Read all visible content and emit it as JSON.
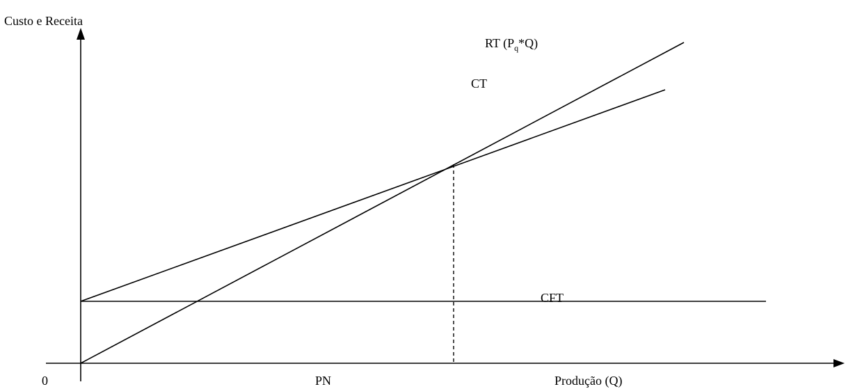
{
  "diagram": {
    "y_axis_label": "Custo e Receita",
    "x_axis_label": "Produção (Q)",
    "origin_label": "0",
    "break_even_label": "PN",
    "rt_label": {
      "main": "RT (P",
      "subscript": "q",
      "tail": "*Q)"
    },
    "ct_label": "CT",
    "cft_label": "CFT"
  }
}
